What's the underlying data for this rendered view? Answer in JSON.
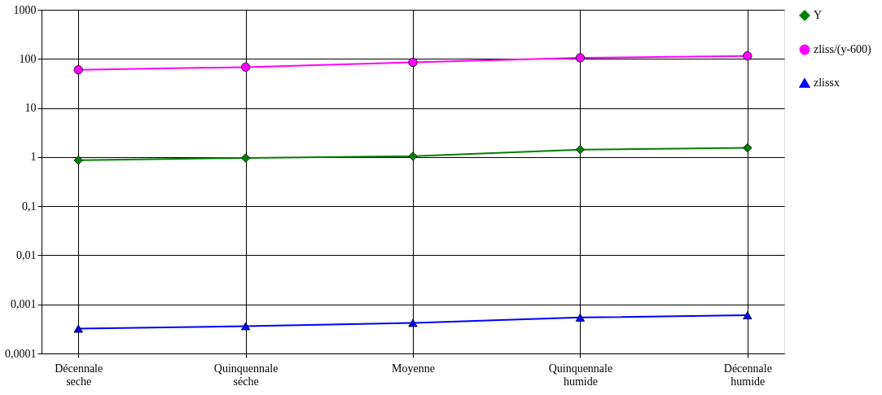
{
  "chart_data": {
    "type": "line",
    "categories": [
      "Décennale seche",
      "Quinquennale séche",
      "Moyenne",
      "Quinquennale humide",
      "Décennale humide"
    ],
    "series": [
      {
        "name": "Y",
        "color": "#008000",
        "marker": "diamond",
        "values": [
          0.86,
          0.96,
          1.04,
          1.42,
          1.54
        ]
      },
      {
        "name": "zliss/(y-600)",
        "color": "#ff00ff",
        "marker": "circle",
        "values": [
          60,
          68,
          85,
          105,
          115
        ]
      },
      {
        "name": "zlissx",
        "color": "#0000ff",
        "marker": "triangle",
        "values": [
          0.00032,
          0.00036,
          0.00042,
          0.00054,
          0.0006
        ]
      }
    ],
    "log": "y",
    "ylim": [
      0.0001,
      1000
    ],
    "yticks": [
      {
        "value": 0.0001,
        "label": "0,0001"
      },
      {
        "value": 0.001,
        "label": "0,001"
      },
      {
        "value": 0.01,
        "label": "0,01"
      },
      {
        "value": 0.1,
        "label": "0,1"
      },
      1,
      10,
      100,
      1000
    ],
    "grid": true,
    "legend": "right",
    "line_style": "solid"
  }
}
